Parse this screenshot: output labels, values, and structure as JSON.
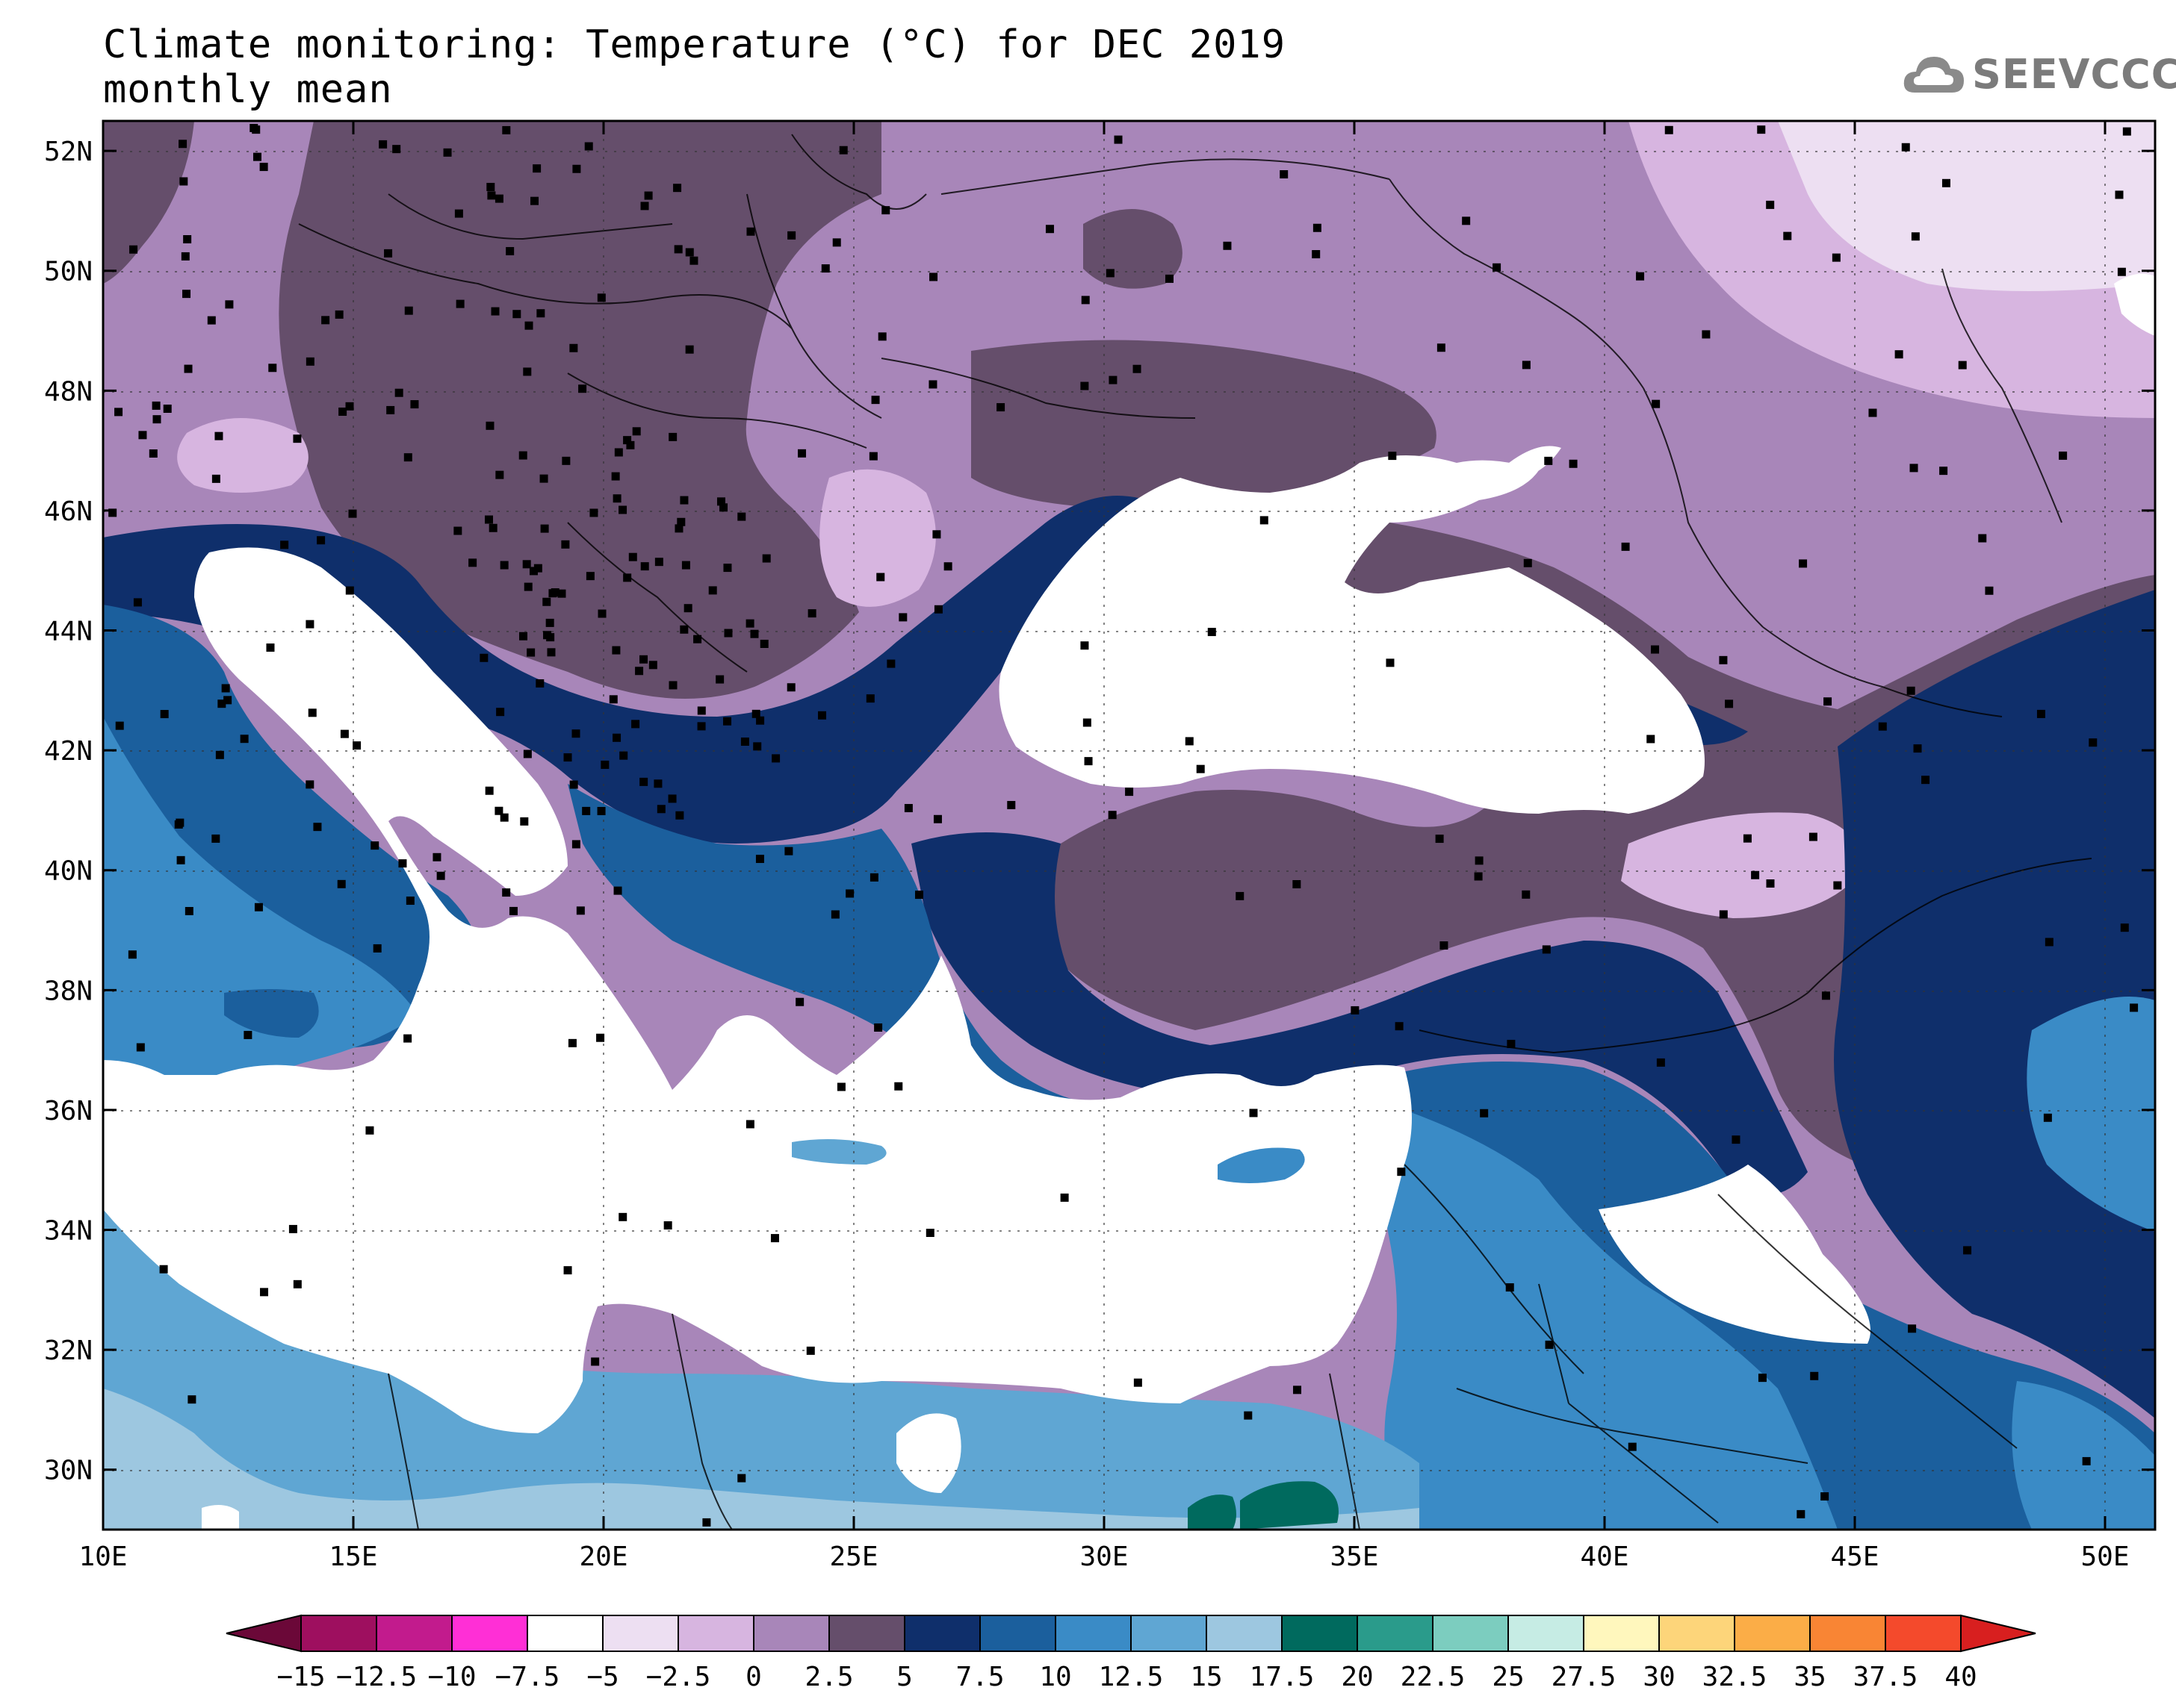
{
  "title": {
    "line1": "Climate monitoring: Temperature (°C) for DEC 2019",
    "line2": "monthly mean"
  },
  "logo": {
    "text": "SEEVCCC",
    "icon": "cloud-icon"
  },
  "map": {
    "lon_range": [
      10,
      51
    ],
    "lat_range": [
      29,
      52.5
    ],
    "x_ticks": [
      "10E",
      "15E",
      "20E",
      "25E",
      "30E",
      "35E",
      "40E",
      "45E",
      "50E"
    ],
    "y_ticks": [
      "52N",
      "50N",
      "48N",
      "46N",
      "44N",
      "42N",
      "40N",
      "38N",
      "36N",
      "34N",
      "32N",
      "30N"
    ],
    "grid": "dotted",
    "colors": {
      "cold_dark": "#654e6b",
      "purple": "#a886b9",
      "light_purple": "#d7b5e0",
      "pale_purple": "#eddff2",
      "navy": "#0f2f6b",
      "blue": "#1b5f9d",
      "mid_blue": "#3a8bc6",
      "light_blue": "#5fa6d3",
      "pale_blue": "#9dc7e0",
      "teal": "#006a5e",
      "sea": "#ffffff"
    }
  },
  "colorbar": {
    "labels": [
      "-15",
      "-12.5",
      "-10",
      "-7.5",
      "-5",
      "-2.5",
      "0",
      "2.5",
      "5",
      "7.5",
      "10",
      "12.5",
      "15",
      "17.5",
      "20",
      "22.5",
      "25",
      "27.5",
      "30",
      "32.5",
      "35",
      "37.5",
      "40"
    ],
    "colors": [
      "#9e0f5f",
      "#c21b8d",
      "#ff2fd6",
      "#ffffff",
      "#eddff2",
      "#d7b5e0",
      "#a886b9",
      "#654e6b",
      "#0f2f6b",
      "#1b5f9d",
      "#3a8bc6",
      "#5fa6d3",
      "#9dc7e0",
      "#006a5e",
      "#2a9b8b",
      "#7ccdbf",
      "#c6ece4",
      "#fff7bd",
      "#fdd57a",
      "#fbad47",
      "#f98534",
      "#f44a2c"
    ],
    "under_color": "#6b0838",
    "over_color": "#d81f1f"
  }
}
